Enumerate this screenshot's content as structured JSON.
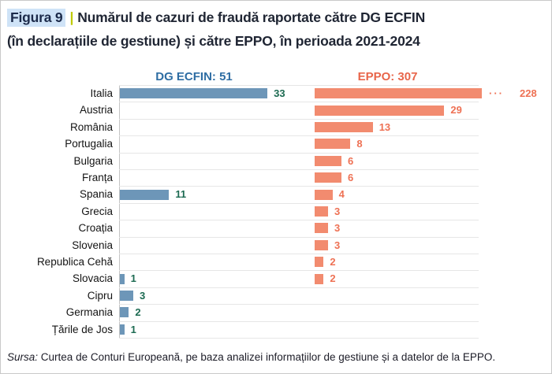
{
  "figure": {
    "label": "Figura 9",
    "separator": "|",
    "title_line1": "Numărul de cazuri de fraudă raportate către DG ECFIN",
    "title_line2": "(în declarațiile de gestiune) și către EPPO, în perioada 2021-2024"
  },
  "headers": {
    "dg_ecfin": "DG ECFIN: 51",
    "eppo": "EPPO: 307"
  },
  "source": {
    "prefix": "Sursa:",
    "text": "Curtea de Conturi Europeană, pe baza analizei informațiilor de gestiune și a datelor de la EPPO."
  },
  "colors": {
    "dg_ecfin_bar": "#6d96b8",
    "eppo_bar": "#f28b6f",
    "dg_ecfin_header": "#2e6da3",
    "eppo_header": "#e8654a",
    "dg_value_label": "#1d6b52",
    "eppo_value_label": "#ee7154",
    "figure_label_highlight": "#cfe3f7",
    "separator": "#bfca06",
    "gridline": "#e6e6e6"
  },
  "chart_data": {
    "type": "bar",
    "orientation": "horizontal",
    "title": "Numărul de cazuri de fraudă raportate către DG ECFIN (în declarațiile de gestiune) și către EPPO, în perioada 2021-2024",
    "categories": [
      "Italia",
      "Austria",
      "România",
      "Portugalia",
      "Bulgaria",
      "Franța",
      "Spania",
      "Grecia",
      "Croația",
      "Slovenia",
      "Republica Cehă",
      "Slovacia",
      "Cipru",
      "Germania",
      "Țările de Jos"
    ],
    "series": [
      {
        "name": "DG ECFIN",
        "total": 51,
        "values": [
          33,
          0,
          0,
          0,
          0,
          0,
          11,
          0,
          0,
          0,
          0,
          1,
          3,
          2,
          1
        ]
      },
      {
        "name": "EPPO",
        "total": 307,
        "values": [
          228,
          29,
          13,
          8,
          6,
          6,
          4,
          3,
          3,
          3,
          2,
          2,
          0,
          0,
          0
        ]
      }
    ],
    "value_labels": "end of bar, only for non-zero values",
    "truncation": {
      "category": "Italia",
      "series": "EPPO",
      "indicator": "···"
    },
    "grid": "horizontal row separators",
    "legend_position": "panel headers above bars",
    "xlim_px_scale": "same linear scale for both panels"
  }
}
